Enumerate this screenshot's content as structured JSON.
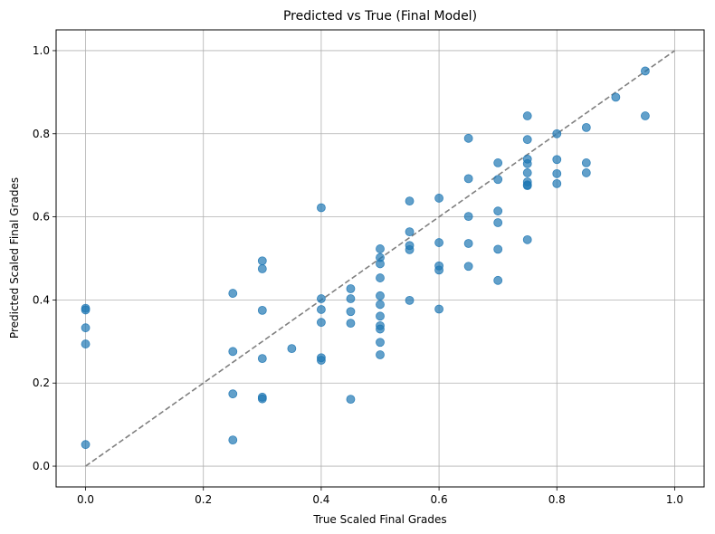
{
  "chart_data": {
    "type": "scatter",
    "title": "Predicted vs True (Final Model)",
    "xlabel": "True Scaled Final Grades",
    "ylabel": "Predicted Scaled Final Grades",
    "xlim": [
      -0.05,
      1.05
    ],
    "ylim": [
      -0.05,
      1.05
    ],
    "xticks": [
      "0.0",
      "0.2",
      "0.4",
      "0.6",
      "0.8",
      "1.0"
    ],
    "yticks": [
      "0.0",
      "0.2",
      "0.4",
      "0.6",
      "0.8",
      "1.0"
    ],
    "grid": true,
    "reference_line": {
      "style": "dashed",
      "color": "#7f7f7f",
      "from": [
        0,
        0
      ],
      "to": [
        1,
        1
      ]
    },
    "point_color": "#1f77b4",
    "points": [
      {
        "x": 0.0,
        "y": 0.38
      },
      {
        "x": 0.0,
        "y": 0.376
      },
      {
        "x": 0.0,
        "y": 0.333
      },
      {
        "x": 0.0,
        "y": 0.294
      },
      {
        "x": 0.0,
        "y": 0.052
      },
      {
        "x": 0.25,
        "y": 0.416
      },
      {
        "x": 0.25,
        "y": 0.276
      },
      {
        "x": 0.25,
        "y": 0.174
      },
      {
        "x": 0.25,
        "y": 0.063
      },
      {
        "x": 0.3,
        "y": 0.494
      },
      {
        "x": 0.3,
        "y": 0.475
      },
      {
        "x": 0.3,
        "y": 0.375
      },
      {
        "x": 0.3,
        "y": 0.259
      },
      {
        "x": 0.3,
        "y": 0.166
      },
      {
        "x": 0.3,
        "y": 0.162
      },
      {
        "x": 0.35,
        "y": 0.283
      },
      {
        "x": 0.4,
        "y": 0.622
      },
      {
        "x": 0.4,
        "y": 0.403
      },
      {
        "x": 0.4,
        "y": 0.377
      },
      {
        "x": 0.4,
        "y": 0.346
      },
      {
        "x": 0.4,
        "y": 0.261
      },
      {
        "x": 0.4,
        "y": 0.255
      },
      {
        "x": 0.45,
        "y": 0.427
      },
      {
        "x": 0.45,
        "y": 0.403
      },
      {
        "x": 0.45,
        "y": 0.372
      },
      {
        "x": 0.45,
        "y": 0.344
      },
      {
        "x": 0.45,
        "y": 0.161
      },
      {
        "x": 0.5,
        "y": 0.523
      },
      {
        "x": 0.5,
        "y": 0.502
      },
      {
        "x": 0.5,
        "y": 0.487
      },
      {
        "x": 0.5,
        "y": 0.453
      },
      {
        "x": 0.5,
        "y": 0.41
      },
      {
        "x": 0.5,
        "y": 0.389
      },
      {
        "x": 0.5,
        "y": 0.361
      },
      {
        "x": 0.5,
        "y": 0.338
      },
      {
        "x": 0.5,
        "y": 0.33
      },
      {
        "x": 0.5,
        "y": 0.298
      },
      {
        "x": 0.5,
        "y": 0.268
      },
      {
        "x": 0.55,
        "y": 0.638
      },
      {
        "x": 0.55,
        "y": 0.564
      },
      {
        "x": 0.55,
        "y": 0.531
      },
      {
        "x": 0.55,
        "y": 0.521
      },
      {
        "x": 0.55,
        "y": 0.399
      },
      {
        "x": 0.6,
        "y": 0.645
      },
      {
        "x": 0.6,
        "y": 0.538
      },
      {
        "x": 0.6,
        "y": 0.482
      },
      {
        "x": 0.6,
        "y": 0.472
      },
      {
        "x": 0.6,
        "y": 0.378
      },
      {
        "x": 0.65,
        "y": 0.789
      },
      {
        "x": 0.65,
        "y": 0.692
      },
      {
        "x": 0.65,
        "y": 0.601
      },
      {
        "x": 0.65,
        "y": 0.536
      },
      {
        "x": 0.65,
        "y": 0.481
      },
      {
        "x": 0.7,
        "y": 0.73
      },
      {
        "x": 0.7,
        "y": 0.69
      },
      {
        "x": 0.7,
        "y": 0.614
      },
      {
        "x": 0.7,
        "y": 0.586
      },
      {
        "x": 0.7,
        "y": 0.522
      },
      {
        "x": 0.7,
        "y": 0.447
      },
      {
        "x": 0.75,
        "y": 0.843
      },
      {
        "x": 0.75,
        "y": 0.786
      },
      {
        "x": 0.75,
        "y": 0.739
      },
      {
        "x": 0.75,
        "y": 0.728
      },
      {
        "x": 0.75,
        "y": 0.706
      },
      {
        "x": 0.75,
        "y": 0.684
      },
      {
        "x": 0.75,
        "y": 0.677
      },
      {
        "x": 0.75,
        "y": 0.675
      },
      {
        "x": 0.75,
        "y": 0.545
      },
      {
        "x": 0.8,
        "y": 0.8
      },
      {
        "x": 0.8,
        "y": 0.738
      },
      {
        "x": 0.8,
        "y": 0.704
      },
      {
        "x": 0.8,
        "y": 0.68
      },
      {
        "x": 0.85,
        "y": 0.815
      },
      {
        "x": 0.85,
        "y": 0.73
      },
      {
        "x": 0.85,
        "y": 0.706
      },
      {
        "x": 0.9,
        "y": 0.888
      },
      {
        "x": 0.95,
        "y": 0.951
      },
      {
        "x": 0.95,
        "y": 0.843
      }
    ]
  }
}
